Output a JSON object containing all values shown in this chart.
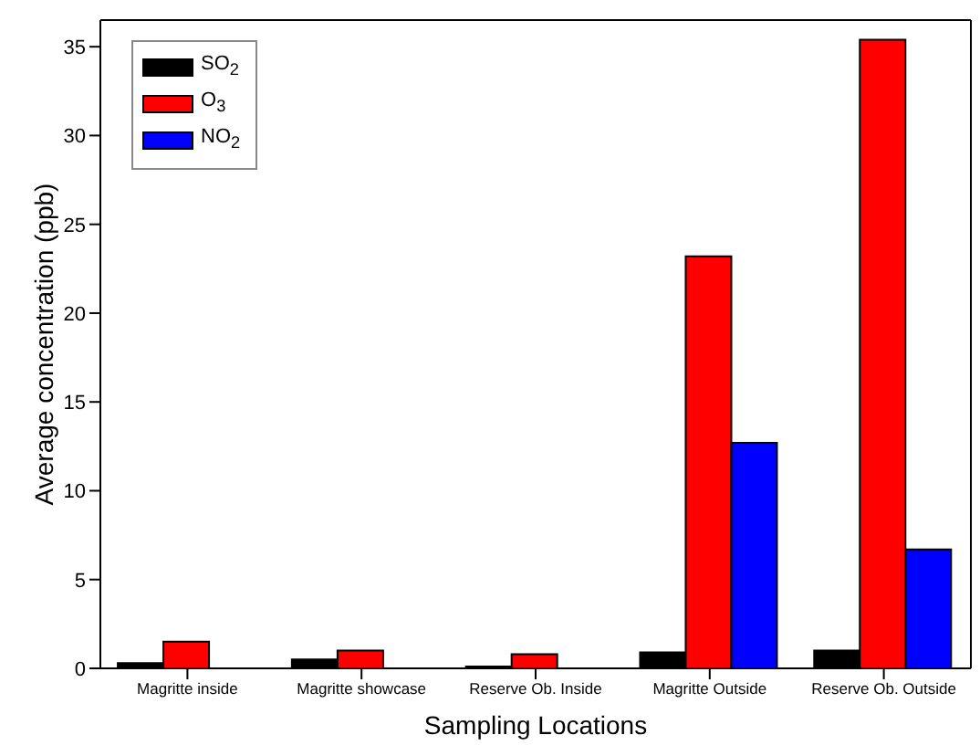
{
  "chart_data": {
    "type": "bar",
    "xlabel": "Sampling Locations",
    "ylabel": "Average concentration (ppb)",
    "categories": [
      "Magritte inside",
      "Magritte showcase",
      "Reserve Ob. Inside",
      "Magritte Outside",
      "Reserve Ob. Outside"
    ],
    "series": [
      {
        "name": "SO$_{2}$",
        "color": "#000000",
        "values": [
          0.3,
          0.5,
          0.1,
          0.9,
          1.0
        ]
      },
      {
        "name": "O$_{3}$",
        "color": "#ff0000",
        "values": [
          1.5,
          1.0,
          0.8,
          23.2,
          35.4
        ]
      },
      {
        "name": "NO$_{2}$",
        "color": "#0000ff",
        "values": [
          null,
          null,
          null,
          12.7,
          6.7
        ]
      }
    ],
    "ylim": [
      0,
      36.5
    ],
    "yticks": [
      0,
      5,
      10,
      15,
      20,
      25,
      30,
      35
    ],
    "legend": "top left"
  }
}
